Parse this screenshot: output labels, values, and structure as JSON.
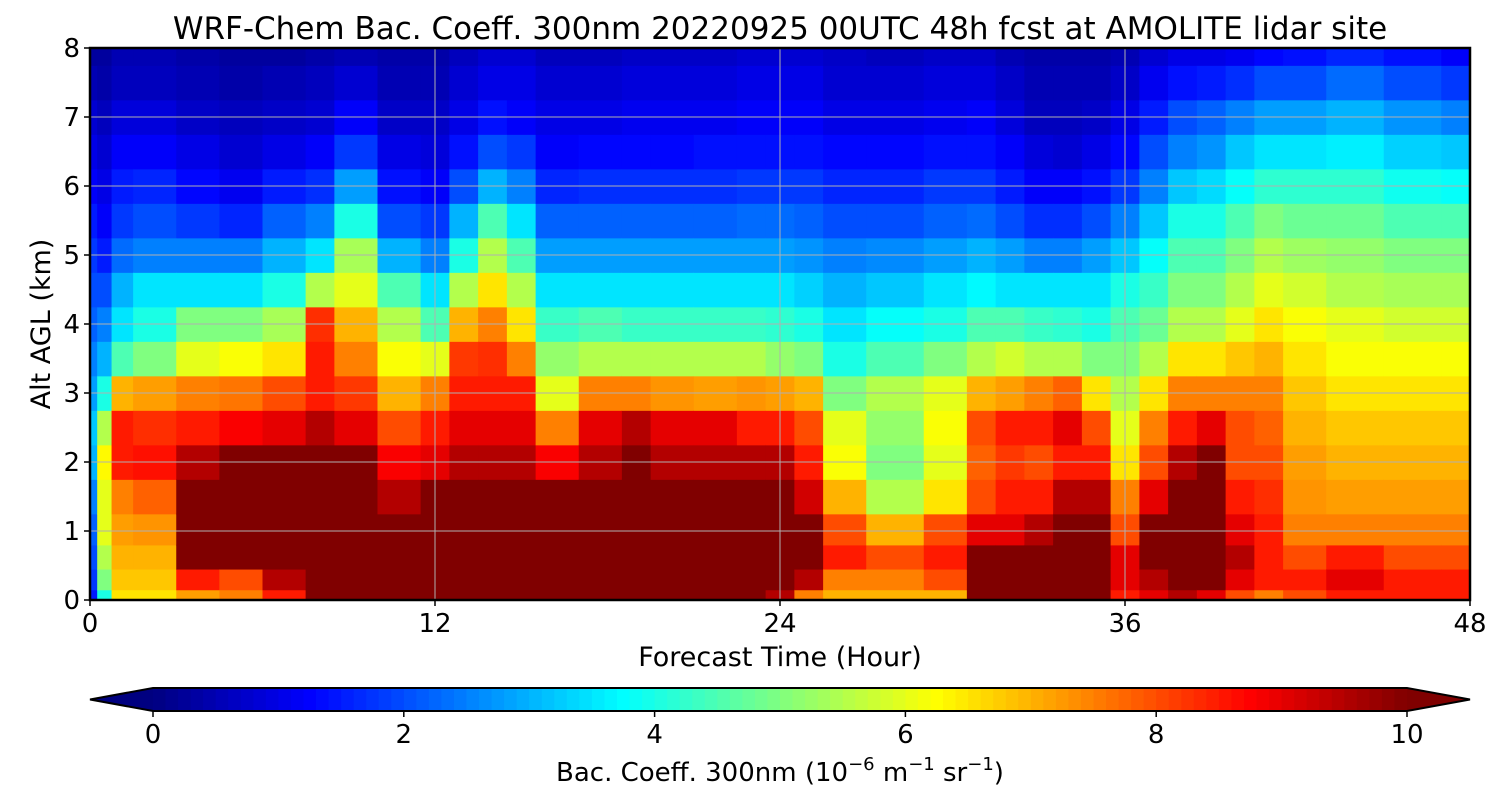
{
  "chart_data": {
    "type": "heatmap",
    "title": "WRF-Chem Bac. Coeff. 300nm  20220925 00UTC 48h fcst at AMOLITE lidar site",
    "xlabel": "Forecast Time (Hour)",
    "ylabel": "Alt AGL (km)",
    "xlim": [
      0,
      48
    ],
    "ylim": [
      0,
      8
    ],
    "x_ticks": [
      "0",
      "12",
      "24",
      "36",
      "48"
    ],
    "x_tick_values": [
      0,
      12,
      24,
      36,
      48
    ],
    "y_ticks": [
      "0",
      "1",
      "2",
      "3",
      "4",
      "5",
      "6",
      "7",
      "8"
    ],
    "y_tick_values": [
      0,
      1,
      2,
      3,
      4,
      5,
      6,
      7,
      8
    ],
    "grid": true,
    "colormap": "jet",
    "colorbar": {
      "label_main": "Bac. Coeff. 300nm  (10",
      "label_exp1": "−6",
      "label_mid": " m",
      "label_exp2": "−1",
      "label_mid2": " sr",
      "label_exp3": "−1",
      "label_end": ")",
      "range": [
        0,
        10
      ],
      "ticks": [
        "0",
        "2",
        "4",
        "6",
        "8",
        "10"
      ],
      "tick_values": [
        0,
        2,
        4,
        6,
        8,
        10
      ],
      "extend": "both",
      "orientation": "horizontal"
    },
    "x": [
      0,
      0.5,
      1,
      2,
      4,
      5,
      7,
      8,
      9,
      11,
      12,
      13,
      14,
      15,
      16,
      18,
      19,
      20,
      22,
      23,
      24,
      25,
      26,
      28,
      30,
      31,
      32,
      33,
      34,
      35,
      36,
      37,
      38,
      39,
      40,
      41,
      42,
      44,
      46,
      48
    ],
    "y": [
      0,
      0.3,
      0.6,
      1.0,
      1.5,
      2.0,
      2.5,
      3.0,
      3.5,
      4.0,
      4.5,
      5.0,
      5.5,
      6.0,
      6.5,
      7.0,
      7.5,
      8.0
    ],
    "z": [
      [
        1.5,
        1.8,
        2.0,
        2.2,
        2.5,
        3.0,
        3.2,
        2.8,
        2.5,
        2.2,
        2.0,
        1.8,
        1.5,
        1.2,
        1.0,
        0.8,
        0.5,
        0.3
      ],
      [
        4,
        5,
        5.5,
        6,
        6,
        6.3,
        5.5,
        4,
        3,
        2.5,
        2,
        1.5,
        1.2,
        1,
        0.8,
        0.6,
        0.4,
        0.3
      ],
      [
        6.5,
        6.8,
        7,
        7.2,
        7.5,
        8.5,
        8.5,
        7,
        4.5,
        3.5,
        3,
        2.3,
        1.8,
        1.5,
        1.2,
        0.9,
        0.6,
        0.5
      ],
      [
        6.5,
        6.8,
        7,
        7.3,
        7.8,
        8.6,
        8.3,
        7.2,
        5,
        4,
        3.5,
        2.5,
        2,
        1.6,
        1.2,
        0.9,
        0.6,
        0.5
      ],
      [
        7.2,
        8.5,
        10,
        10,
        10,
        9.5,
        8.5,
        7.5,
        6,
        5,
        3.5,
        2.5,
        1.8,
        1.3,
        1,
        0.7,
        0.5,
        0.4
      ],
      [
        7.5,
        8,
        10,
        10,
        10,
        10,
        8.8,
        7.6,
        6.2,
        5,
        3.5,
        2.5,
        1.6,
        1.1,
        0.8,
        0.6,
        0.4,
        0.3
      ],
      [
        8.5,
        9.5,
        10,
        10,
        10,
        10,
        9,
        8,
        6.5,
        5.4,
        4,
        3,
        2.2,
        1.5,
        1,
        0.7,
        0.5,
        0.3
      ],
      [
        10,
        10,
        10,
        10,
        10,
        10,
        9.5,
        8.5,
        8.5,
        8.3,
        5.5,
        3.5,
        2.5,
        1.7,
        1.2,
        0.8,
        0.6,
        0.4
      ],
      [
        10,
        10,
        10,
        10,
        10,
        10,
        9,
        8.2,
        7.5,
        7,
        6,
        5.4,
        4,
        2.8,
        1.8,
        1.2,
        0.8,
        0.5
      ],
      [
        10,
        10,
        10,
        10,
        9.5,
        8.8,
        8,
        7,
        6.2,
        5.5,
        4.5,
        3,
        2,
        1.4,
        1,
        0.7,
        0.5,
        0.4
      ],
      [
        10,
        10,
        10,
        10,
        10,
        9,
        8.5,
        7.5,
        6,
        4.5,
        3.5,
        2.5,
        1.8,
        1.2,
        0.9,
        0.7,
        0.5,
        0.4
      ],
      [
        10,
        10,
        10,
        10,
        10,
        9.5,
        9,
        8.5,
        8.2,
        7,
        5.5,
        4,
        3,
        2,
        1.4,
        1,
        0.8,
        0.6
      ],
      [
        10,
        10,
        10,
        10,
        10,
        9.5,
        9,
        8.5,
        8.3,
        7.5,
        6.5,
        5.5,
        4.5,
        3,
        2,
        1.4,
        1,
        0.8
      ],
      [
        10,
        10,
        10,
        10,
        10,
        9.5,
        9,
        8.5,
        7.5,
        6.5,
        5.5,
        4.5,
        3.5,
        2.5,
        1.8,
        1.2,
        1,
        0.8
      ],
      [
        10,
        10,
        10,
        10,
        10,
        8.8,
        7.5,
        6,
        5.2,
        4.3,
        3.5,
        2.8,
        2.2,
        1.6,
        1.2,
        1,
        0.8,
        0.6
      ],
      [
        10,
        10,
        10,
        10,
        10,
        9.5,
        9,
        7.5,
        5.5,
        4.5,
        3.5,
        2.8,
        2.2,
        1.7,
        1.3,
        1,
        0.8,
        0.6
      ],
      [
        10,
        10,
        10,
        10,
        10,
        10,
        9.5,
        7.5,
        5.5,
        4.3,
        3.5,
        2.8,
        2.2,
        1.7,
        1.3,
        1.1,
        0.9,
        0.7
      ],
      [
        10,
        10,
        10,
        10,
        10,
        9.5,
        9,
        7.3,
        5.5,
        4.3,
        3.5,
        2.8,
        2.2,
        1.7,
        1.3,
        1.1,
        0.9,
        0.7
      ],
      [
        10,
        10,
        10,
        10,
        10,
        9.5,
        9,
        7.2,
        5.5,
        4.3,
        3.5,
        2.8,
        2.2,
        1.7,
        1.4,
        1.1,
        0.9,
        0.7
      ],
      [
        10,
        10,
        10,
        10,
        10,
        9.5,
        8.5,
        7.3,
        5.5,
        4.3,
        3.5,
        2.8,
        2.3,
        1.8,
        1.4,
        1.2,
        1,
        0.8
      ],
      [
        9.5,
        10,
        10,
        10,
        10,
        9.5,
        8.5,
        7.2,
        5.2,
        4.2,
        3.5,
        2.8,
        2.3,
        1.8,
        1.4,
        1.2,
        1,
        0.8
      ],
      [
        7.5,
        9.5,
        10,
        10,
        9.2,
        8.5,
        8,
        7,
        5,
        4,
        3.3,
        2.7,
        2.2,
        1.8,
        1.4,
        1.2,
        1,
        0.8
      ],
      [
        7,
        7.5,
        8.5,
        8,
        7,
        6.2,
        6,
        5,
        4,
        3.5,
        3,
        2.5,
        2,
        1.6,
        1.3,
        1,
        0.8,
        0.7
      ],
      [
        7,
        7.5,
        8,
        7,
        5.5,
        5,
        5.2,
        5.5,
        4.5,
        3.8,
        3.2,
        2.6,
        2,
        1.6,
        1.3,
        1,
        0.8,
        0.6
      ],
      [
        7,
        8,
        8.5,
        8,
        6.5,
        6,
        6.2,
        6,
        5,
        4,
        3.5,
        2.8,
        2.2,
        1.8,
        1.4,
        1.1,
        0.9,
        0.7
      ],
      [
        10,
        10,
        10,
        9,
        8,
        7.8,
        8,
        7,
        5.5,
        4.5,
        3.7,
        3,
        2.3,
        1.8,
        1.4,
        1.2,
        0.9,
        0.7
      ],
      [
        10,
        10,
        10,
        9,
        8.5,
        8.2,
        8.5,
        7.2,
        5.8,
        4.5,
        3.5,
        2.8,
        2,
        1.5,
        1.2,
        0.9,
        0.7,
        0.5
      ],
      [
        10,
        10,
        10,
        9.5,
        8.5,
        8,
        8.5,
        7.5,
        5.5,
        4.3,
        3.5,
        2.5,
        1.7,
        1.2,
        0.9,
        0.6,
        0.5,
        0.4
      ],
      [
        10,
        10,
        10,
        10,
        9.5,
        8.5,
        9,
        7.8,
        5.5,
        4.2,
        3.5,
        2.5,
        1.7,
        1.2,
        0.8,
        0.6,
        0.5,
        0.4
      ],
      [
        10,
        10,
        10,
        10,
        9.5,
        8.5,
        8,
        6.5,
        5,
        4,
        3.5,
        2.8,
        2,
        1.4,
        1,
        0.7,
        0.5,
        0.4
      ],
      [
        8.5,
        9,
        9,
        8,
        7.5,
        6.5,
        6,
        5.5,
        5,
        4.5,
        4,
        3.2,
        2.5,
        1.8,
        1.3,
        1,
        0.7,
        0.5
      ],
      [
        9,
        9.5,
        10,
        10,
        9,
        8,
        7.5,
        6.5,
        5.5,
        4.8,
        4.3,
        3.8,
        3.2,
        2.5,
        2,
        1.5,
        1.1,
        0.8
      ],
      [
        9.5,
        10,
        10,
        10,
        10,
        9.5,
        8.5,
        7.5,
        6.5,
        5.5,
        5,
        4.5,
        4,
        3.2,
        2.5,
        2,
        1.4,
        1
      ],
      [
        9,
        10,
        10,
        10,
        10,
        10,
        9,
        7.5,
        6.5,
        5.5,
        5,
        4.5,
        4,
        3.4,
        2.7,
        2.2,
        1.5,
        1
      ],
      [
        8,
        9,
        9.5,
        9,
        8.5,
        8,
        8,
        7.5,
        6.8,
        6,
        5.5,
        5,
        4.5,
        3.8,
        3.2,
        2.5,
        1.7,
        1.1
      ],
      [
        7.5,
        8.5,
        8.5,
        8.5,
        8.3,
        8,
        7.8,
        7.5,
        7,
        6.5,
        6,
        5.5,
        5,
        4.2,
        3.5,
        2.8,
        2,
        1.3
      ],
      [
        8,
        8.5,
        8,
        7.5,
        7.3,
        7.2,
        7,
        6.8,
        6.5,
        6.2,
        5.8,
        5.3,
        4.8,
        4.2,
        3.5,
        2.8,
        2,
        1.4
      ],
      [
        8.5,
        9,
        8.5,
        7.5,
        7.2,
        7,
        6.8,
        6.5,
        6.2,
        6,
        5.5,
        5.2,
        4.8,
        4.2,
        3.6,
        3,
        2.3,
        1.6
      ],
      [
        8.5,
        8.5,
        8,
        7.5,
        7.2,
        7,
        6.8,
        6.5,
        6.2,
        5.8,
        5.4,
        5,
        4.5,
        3.9,
        3.3,
        2.7,
        2,
        1.4
      ],
      [
        8.5,
        8.5,
        8,
        7.5,
        7.2,
        7,
        6.8,
        6.5,
        6.2,
        5.8,
        5.4,
        5,
        4.5,
        3.8,
        3.2,
        2.5,
        1.8,
        1.2
      ]
    ]
  }
}
